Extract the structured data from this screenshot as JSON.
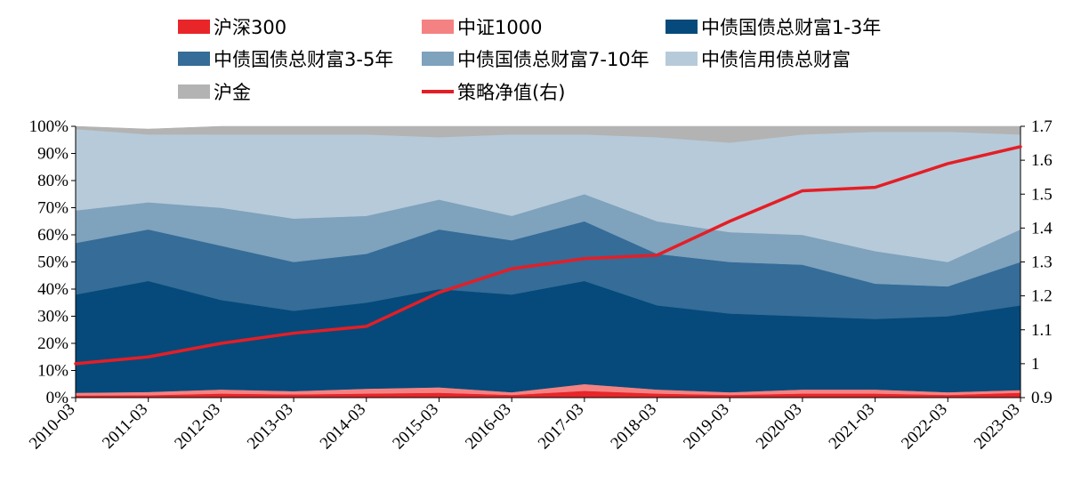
{
  "chart_data": {
    "type": "area",
    "stacked": true,
    "x_ticks": [
      "2010-03",
      "2011-03",
      "2012-03",
      "2013-03",
      "2014-03",
      "2015-03",
      "2016-03",
      "2017-03",
      "2018-03",
      "2019-03",
      "2020-03",
      "2021-03",
      "2022-03",
      "2023-03"
    ],
    "y_left": {
      "min": 0,
      "max": 100,
      "ticks": [
        "0%",
        "10%",
        "20%",
        "30%",
        "40%",
        "50%",
        "60%",
        "70%",
        "80%",
        "90%",
        "100%"
      ]
    },
    "y_right": {
      "min": 0.9,
      "max": 1.7,
      "ticks": [
        "0.9",
        "1",
        "1.1",
        "1.2",
        "1.3",
        "1.4",
        "1.5",
        "1.6",
        "1.7"
      ]
    },
    "x": [
      0,
      1,
      2,
      3,
      4,
      5,
      6,
      7,
      8,
      9,
      10,
      11,
      12,
      13
    ],
    "series": [
      {
        "name": "沪深300",
        "color": "#e8262a",
        "values": [
          0.8,
          0.9,
          1.5,
          1.2,
          1.5,
          1.8,
          1.0,
          2.5,
          1.5,
          1.0,
          1.5,
          1.5,
          1.0,
          1.8
        ]
      },
      {
        "name": "中证1000",
        "color": "#f58282",
        "values": [
          1.0,
          1.2,
          1.5,
          1.2,
          1.8,
          2.0,
          1.0,
          2.5,
          1.5,
          1.0,
          1.5,
          1.5,
          1.0,
          1.0
        ]
      },
      {
        "name": "中债国债总财富1-3年",
        "color": "#054a7a",
        "values": [
          36.2,
          40.9,
          33.0,
          29.6,
          31.7,
          36.2,
          36.0,
          38.0,
          31.0,
          29.0,
          27.0,
          26.0,
          28.0,
          31.2
        ]
      },
      {
        "name": "中债国债总财富3-5年",
        "color": "#356c98",
        "values": [
          19.0,
          19.0,
          20.0,
          18.0,
          18.0,
          22.0,
          20.0,
          22.0,
          19.0,
          19.0,
          19.0,
          13.0,
          11.0,
          16.0
        ]
      },
      {
        "name": "中债国债总财富7-10年",
        "color": "#7fa2bd",
        "values": [
          12.0,
          10.0,
          14.0,
          16.0,
          14.0,
          11.0,
          9.0,
          10.0,
          12.0,
          11.0,
          11.0,
          12.0,
          9.0,
          12.0
        ]
      },
      {
        "name": "中债信用债总财富",
        "color": "#b7cad9",
        "values": [
          30.0,
          25.0,
          27.0,
          31.0,
          30.0,
          23.0,
          30.0,
          22.0,
          31.0,
          33.0,
          37.0,
          44.0,
          48.0,
          35.0
        ]
      },
      {
        "name": "沪金",
        "color": "#b3b3b3",
        "values": [
          1.0,
          2.0,
          3.0,
          3.0,
          3.0,
          4.0,
          3.0,
          3.0,
          4.0,
          6.0,
          3.0,
          2.0,
          2.0,
          3.0
        ]
      }
    ],
    "line": {
      "name": "策略净值(右)",
      "color": "#e41e26",
      "axis": "right",
      "values": [
        1.0,
        1.02,
        1.06,
        1.09,
        1.11,
        1.21,
        1.28,
        1.31,
        1.32,
        1.42,
        1.51,
        1.52,
        1.59,
        1.64
      ]
    }
  },
  "legend": [
    {
      "label": "沪深300",
      "color": "#e8262a",
      "kind": "box"
    },
    {
      "label": "中证1000",
      "color": "#f58282",
      "kind": "box"
    },
    {
      "label": "中债国债总财富1-3年",
      "color": "#054a7a",
      "kind": "box"
    },
    {
      "label": "中债国债总财富3-5年",
      "color": "#356c98",
      "kind": "box"
    },
    {
      "label": "中债国债总财富7-10年",
      "color": "#7fa2bd",
      "kind": "box"
    },
    {
      "label": "中债信用债总财富",
      "color": "#b7cad9",
      "kind": "box"
    },
    {
      "label": "沪金",
      "color": "#b3b3b3",
      "kind": "box"
    },
    {
      "label": "策略净值(右)",
      "color": "#e41e26",
      "kind": "line"
    }
  ]
}
